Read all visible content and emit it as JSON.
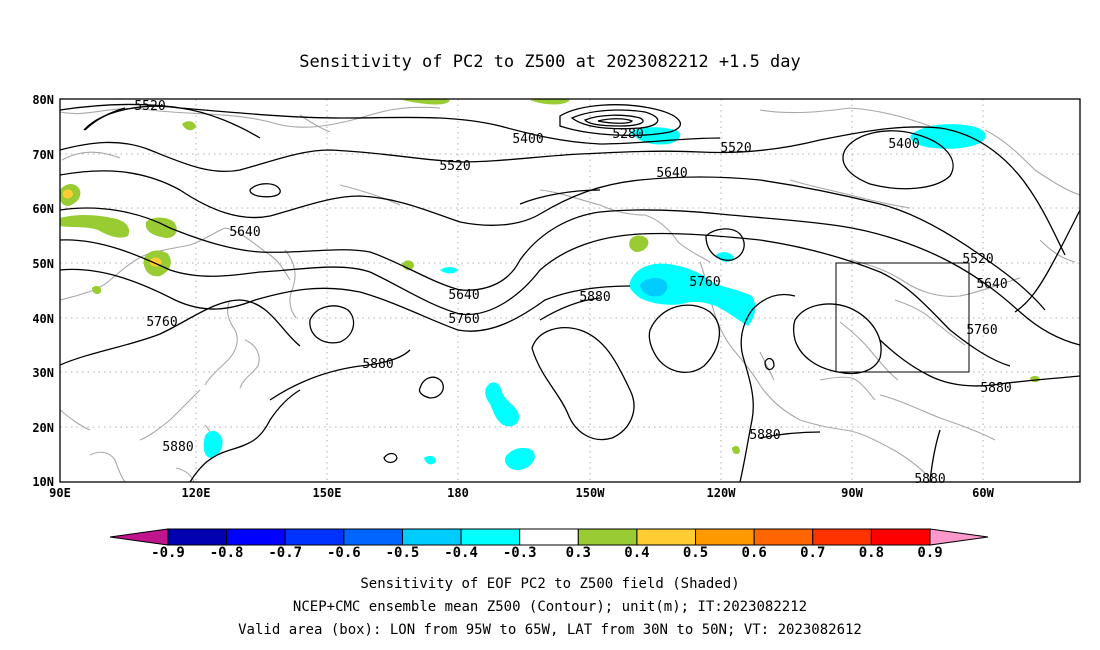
{
  "title": "Sensitivity of PC2 to Z500 at 2023082212 +1.5 day",
  "map": {
    "lon_labels": [
      "90E",
      "120E",
      "150E",
      "180",
      "150W",
      "120W",
      "90W",
      "60W"
    ],
    "lat_labels": [
      "80N",
      "70N",
      "60N",
      "50N",
      "40N",
      "30N",
      "20N",
      "10N"
    ],
    "contour_labels": [
      "5520",
      "5400",
      "5280",
      "5520",
      "5400",
      "5640",
      "5520",
      "5640",
      "5640",
      "5760",
      "5880",
      "5760",
      "5640",
      "5520",
      "5760",
      "5880",
      "5880",
      "5880",
      "5760",
      "5880",
      "5880"
    ],
    "box": {
      "lon_from": "95W",
      "lon_to": "65W",
      "lat_from": "30N",
      "lat_to": "50N"
    },
    "colors": {
      "neg_0_4_to_0_3": "#00ffff",
      "neg_0_5_to_0_4": "#00ccff",
      "pos_0_3_to_0_4": "#99cc33",
      "pos_0_4_to_0_5": "#ffcc33",
      "coastline": "#a8a8a8",
      "contour": "#000000"
    }
  },
  "colorbar": {
    "labels": [
      "-0.9",
      "-0.8",
      "-0.7",
      "-0.6",
      "-0.5",
      "-0.4",
      "-0.3",
      "0.3",
      "0.4",
      "0.5",
      "0.6",
      "0.7",
      "0.8",
      "0.9"
    ],
    "colors": [
      "#c0148c",
      "#0000b3",
      "#0000ff",
      "#0033ff",
      "#0066ff",
      "#00ccff",
      "#00ffff",
      "#ffffff",
      "#99cc33",
      "#ffcc33",
      "#ff9900",
      "#ff6600",
      "#ff3300",
      "#ff0000",
      "#ff99cc"
    ]
  },
  "caption": {
    "line1": "Sensitivity of EOF PC2 to Z500 field (Shaded)",
    "line2": "NCEP+CMC ensemble mean Z500 (Contour); unit(m); IT:2023082212",
    "line3": "Valid area (box): LON from 95W to 65W, LAT from 30N to 50N; VT: 2023082612"
  }
}
